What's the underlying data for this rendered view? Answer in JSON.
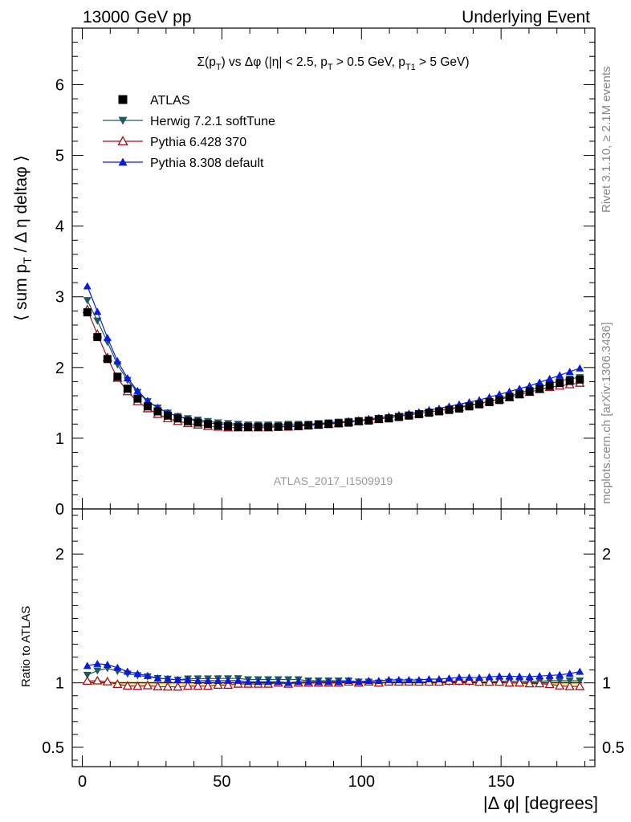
{
  "header": {
    "left": "13000 GeV pp",
    "right": "Underlying Event"
  },
  "side_labels": {
    "rivet": "Rivet 3.1.10, ≥ 2.1M events",
    "mcplots": "mcplots.cern.ch [arXiv:1306.3436]"
  },
  "watermark": "ATLAS_2017_I1509919",
  "colors": {
    "atlas": "#000000",
    "herwig": "#1f5a5a",
    "pythia6": "#a01020",
    "pythia8": "#0a1adc",
    "ratio_band": "#f0e040"
  },
  "chart_data": [
    {
      "type": "scatter",
      "panel": "main",
      "title": "Σ(pT) vs Δφ (|η| < 2.5, pT > 0.5 GeV, pT1 > 5 GeV)",
      "xlabel": "|Δ φ| [degrees]",
      "ylabel": "⟨ sum pT / Δ η deltaφ ⟩",
      "xlim": [
        -3.6,
        183.6
      ],
      "ylim": [
        0,
        6.8
      ],
      "yticks": [
        "0",
        "1",
        "2",
        "3",
        "4",
        "5",
        "6"
      ],
      "xticks": [
        "0",
        "50",
        "100",
        "150"
      ],
      "grid": false,
      "legend_position": "top-left",
      "x": [
        1.8,
        5.4,
        9.0,
        12.6,
        16.2,
        19.8,
        23.4,
        27.0,
        30.6,
        34.2,
        37.8,
        41.4,
        45.0,
        48.6,
        52.2,
        55.8,
        59.4,
        63.0,
        66.6,
        70.2,
        73.8,
        77.4,
        81.0,
        84.6,
        88.2,
        91.8,
        95.4,
        99.0,
        102.6,
        106.2,
        109.8,
        113.4,
        117.0,
        120.6,
        124.2,
        127.8,
        131.4,
        135.0,
        138.6,
        142.2,
        145.8,
        149.4,
        153.0,
        156.6,
        160.2,
        163.8,
        167.4,
        171.0,
        174.6,
        178.2
      ],
      "series": [
        {
          "name": "ATLAS",
          "marker": "square",
          "values": [
            2.78,
            2.43,
            2.12,
            1.87,
            1.7,
            1.56,
            1.45,
            1.38,
            1.32,
            1.28,
            1.24,
            1.22,
            1.2,
            1.18,
            1.17,
            1.16,
            1.16,
            1.16,
            1.16,
            1.16,
            1.17,
            1.17,
            1.18,
            1.19,
            1.2,
            1.21,
            1.22,
            1.24,
            1.25,
            1.27,
            1.28,
            1.3,
            1.32,
            1.34,
            1.36,
            1.38,
            1.4,
            1.42,
            1.45,
            1.48,
            1.51,
            1.54,
            1.58,
            1.62,
            1.66,
            1.7,
            1.74,
            1.78,
            1.81,
            1.83
          ]
        },
        {
          "name": "Herwig 7.2.1 softTune",
          "marker": "triangle-down",
          "values": [
            2.95,
            2.66,
            2.36,
            2.04,
            1.82,
            1.65,
            1.52,
            1.43,
            1.36,
            1.31,
            1.28,
            1.26,
            1.24,
            1.22,
            1.21,
            1.2,
            1.19,
            1.19,
            1.19,
            1.19,
            1.2,
            1.2,
            1.2,
            1.21,
            1.22,
            1.23,
            1.24,
            1.25,
            1.26,
            1.27,
            1.29,
            1.31,
            1.33,
            1.35,
            1.37,
            1.39,
            1.41,
            1.43,
            1.46,
            1.49,
            1.52,
            1.56,
            1.6,
            1.64,
            1.68,
            1.72,
            1.77,
            1.81,
            1.84,
            1.86
          ]
        },
        {
          "name": "Pythia 6.428 370",
          "marker": "triangle-open",
          "values": [
            2.82,
            2.47,
            2.14,
            1.85,
            1.66,
            1.52,
            1.42,
            1.34,
            1.28,
            1.24,
            1.21,
            1.19,
            1.17,
            1.16,
            1.15,
            1.15,
            1.15,
            1.15,
            1.15,
            1.16,
            1.16,
            1.17,
            1.18,
            1.19,
            1.2,
            1.21,
            1.23,
            1.24,
            1.26,
            1.27,
            1.29,
            1.31,
            1.33,
            1.35,
            1.37,
            1.39,
            1.42,
            1.44,
            1.47,
            1.49,
            1.52,
            1.55,
            1.58,
            1.62,
            1.65,
            1.69,
            1.72,
            1.74,
            1.76,
            1.78
          ]
        },
        {
          "name": "Pythia 8.308 default",
          "marker": "triangle-up",
          "values": [
            3.15,
            2.79,
            2.42,
            2.09,
            1.85,
            1.67,
            1.53,
            1.43,
            1.36,
            1.31,
            1.27,
            1.24,
            1.22,
            1.2,
            1.19,
            1.18,
            1.17,
            1.17,
            1.17,
            1.17,
            1.17,
            1.18,
            1.19,
            1.2,
            1.21,
            1.22,
            1.24,
            1.25,
            1.27,
            1.29,
            1.31,
            1.33,
            1.35,
            1.37,
            1.4,
            1.42,
            1.45,
            1.48,
            1.51,
            1.54,
            1.58,
            1.62,
            1.66,
            1.7,
            1.74,
            1.79,
            1.84,
            1.89,
            1.94,
            1.99
          ]
        }
      ]
    },
    {
      "type": "scatter",
      "panel": "ratio",
      "ylabel": "Ratio to ATLAS",
      "xlabel": "|Δ φ| [degrees]",
      "xlim": [
        -3.6,
        183.6
      ],
      "ylim": [
        0.35,
        2.35
      ],
      "yticks": [
        "0.5",
        "1",
        "2"
      ],
      "reference": 1.0
    }
  ]
}
